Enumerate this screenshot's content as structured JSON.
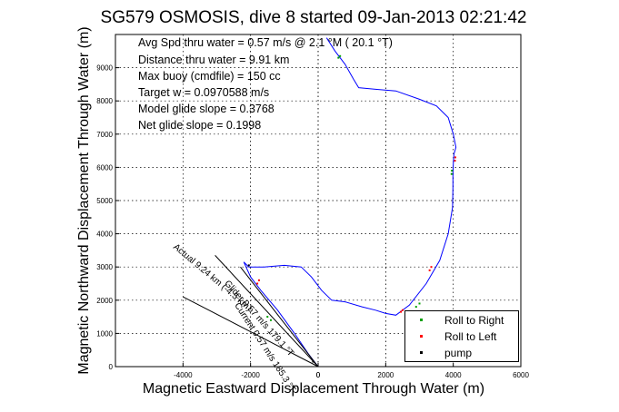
{
  "chart_data": {
    "type": "line",
    "title": "SG579 OSMOSIS, dive 8 started 09-Jan-2013 02:21:42",
    "xlabel": "Magnetic Eastward Displacement Through Water (m)",
    "ylabel": "Magnetic Northward Displacement Through Water (m)",
    "xlim": [
      -6000,
      6000
    ],
    "ylim": [
      0,
      10000
    ],
    "xticks": [
      -4000,
      -2000,
      0,
      2000,
      4000,
      6000
    ],
    "yticks": [
      0,
      1000,
      2000,
      3000,
      4000,
      5000,
      6000,
      7000,
      8000,
      9000
    ],
    "grid": true,
    "legend_location": "bottom-right",
    "annotations": [
      "Avg Spd thru water =  0.57 m/s @   2.1   °M ( 20.1 °T)",
      "Distance thru water =  9.91 km",
      "Max buoy (cmdfile) = 150 cc",
      "Target w = 0.0970588 m/s",
      "Model glide slope = 0.3768",
      "Net glide slope = 0.1998"
    ],
    "line_labels": [
      "Current 0.57 m/s 185.3 °T",
      "Glider 0.57 m/s 179.1 °T",
      "Actual 9.24 km (-4.5 km)"
    ],
    "series": [
      {
        "name": "",
        "color": "#0000ff",
        "style": "line",
        "x": [
          0,
          -300,
          -700,
          -1200,
          -1700,
          -2000,
          -2200,
          -2050,
          -1600,
          -1000,
          -500,
          -200,
          100,
          400,
          800,
          1300,
          1700,
          2000,
          2300,
          2700,
          3200,
          3600,
          3850,
          3980,
          3990,
          3990,
          4000,
          4020,
          4080,
          4000,
          3850,
          3500,
          3000,
          2300,
          1700,
          1200,
          1050,
          800,
          500,
          250
        ],
        "y": [
          0,
          400,
          1000,
          1700,
          2300,
          2700,
          3150,
          3000,
          3000,
          3050,
          3000,
          2700,
          2300,
          2000,
          1950,
          1800,
          1700,
          1600,
          1550,
          1850,
          2500,
          3200,
          4000,
          4800,
          5400,
          5800,
          6100,
          6400,
          6600,
          7000,
          7500,
          7850,
          8050,
          8300,
          8350,
          8400,
          8650,
          9100,
          9500,
          9900
        ]
      },
      {
        "name": "",
        "color": "#000000",
        "style": "line",
        "x": [
          0,
          -3050
        ],
        "y": [
          0,
          3350
        ]
      },
      {
        "name": "",
        "color": "#000000",
        "style": "line",
        "x": [
          0,
          -4000
        ],
        "y": [
          0,
          2100
        ]
      },
      {
        "name": "",
        "color": "#000000",
        "style": "line",
        "x": [
          0,
          -2300
        ],
        "y": [
          0,
          3000
        ]
      },
      {
        "name": "Roll to Right",
        "color": "#00a000",
        "style": "markers",
        "x": [
          3950,
          3960,
          2900,
          3000,
          -1500,
          -1400,
          600,
          650
        ],
        "y": [
          5800,
          5900,
          1800,
          1900,
          1500,
          1400,
          9300,
          9350
        ]
      },
      {
        "name": "Roll to Left",
        "color": "#ff0000",
        "style": "markers",
        "x": [
          4050,
          4060,
          3300,
          3350,
          2450,
          2500,
          -1800,
          -1750
        ],
        "y": [
          6200,
          6300,
          2900,
          3000,
          1650,
          1700,
          2500,
          2600
        ]
      },
      {
        "name": "pump",
        "color": "#000000",
        "style": "markers",
        "x": [
          -2050,
          -150
        ],
        "y": [
          3050,
          150
        ]
      }
    ]
  }
}
